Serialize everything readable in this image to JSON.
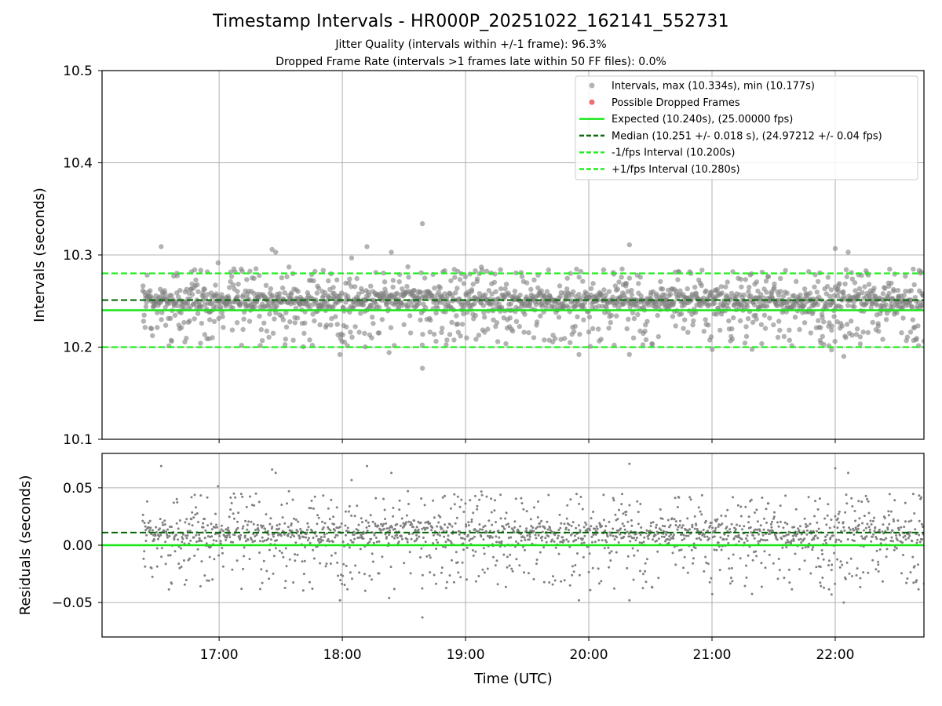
{
  "figure": {
    "title": "Timestamp Intervals - HR000P_20251022_162141_552731",
    "subtitle_1": "Jitter Quality (intervals within +/-1 frame): 96.3%",
    "subtitle_2": "Dropped Frame Rate (intervals >1 frames late within 50 FF files): 0.0%"
  },
  "colors": {
    "points": "#808080",
    "dropped": "#e8494c",
    "expected": "#19e619",
    "median": "#0b6b0b",
    "fps_interval": "#22ee22",
    "grid": "#b0b0b0"
  },
  "chart_data": [
    {
      "type": "scatter",
      "panel": "intervals",
      "ylabel": "Intervals (seconds)",
      "ylim": [
        10.1,
        10.5
      ],
      "yticks": [
        10.1,
        10.2,
        10.3,
        10.4,
        10.5
      ],
      "ytick_labels": [
        "10.1",
        "10.2",
        "10.3",
        "10.4",
        "10.5"
      ],
      "xlim_hours": [
        16.05,
        22.72
      ],
      "grid": true,
      "legend_position": "top-right",
      "series": [
        {
          "name": "Intervals, max (10.334s), min (10.177s)",
          "kind": "points",
          "count": 1800,
          "start_hour": 16.38,
          "end_hour": 22.72,
          "max": 10.334,
          "min": 10.177,
          "typical_band": [
            10.24,
            10.262
          ],
          "notable_points": [
            {
              "x": 18.65,
              "y": 10.334
            },
            {
              "x": 18.65,
              "y": 10.177
            },
            {
              "x": 20.33,
              "y": 10.311
            },
            {
              "x": 16.53,
              "y": 10.309
            },
            {
              "x": 18.2,
              "y": 10.309
            },
            {
              "x": 22.0,
              "y": 10.307
            },
            {
              "x": 17.43,
              "y": 10.306
            },
            {
              "x": 19.92,
              "y": 10.192
            },
            {
              "x": 20.33,
              "y": 10.192
            },
            {
              "x": 17.98,
              "y": 10.192
            },
            {
              "x": 18.38,
              "y": 10.194
            },
            {
              "x": 21.97,
              "y": 10.197
            }
          ]
        },
        {
          "name": "Possible Dropped Frames",
          "kind": "points",
          "values": []
        },
        {
          "name": "Expected (10.240s), (25.00000 fps)",
          "kind": "hline",
          "y": 10.24
        },
        {
          "name": "Median (10.251 +/- 0.018 s), (24.97212 +/- 0.04 fps)",
          "kind": "hline",
          "y": 10.251
        },
        {
          "name": "-1/fps Interval (10.200s)",
          "kind": "hline",
          "y": 10.2
        },
        {
          "name": "+1/fps Interval (10.280s)",
          "kind": "hline",
          "y": 10.28
        }
      ]
    },
    {
      "type": "scatter",
      "panel": "residuals",
      "xlabel": "Time (UTC)",
      "ylabel": "Residuals (seconds)",
      "ylim": [
        -0.08,
        0.08
      ],
      "yticks": [
        -0.05,
        0.0,
        0.05
      ],
      "ytick_labels": [
        "−0.05",
        "0.00",
        "0.05"
      ],
      "xlim_hours": [
        16.05,
        22.72
      ],
      "xticks_hours": [
        17,
        18,
        19,
        20,
        21,
        22
      ],
      "xtick_labels": [
        "17:00",
        "18:00",
        "19:00",
        "20:00",
        "21:00",
        "22:00"
      ],
      "grid": true,
      "series": [
        {
          "name": "Residuals",
          "kind": "points",
          "derived_from": "intervals minus expected (10.240s)"
        },
        {
          "name": "Expected",
          "kind": "hline",
          "y": 0.0
        },
        {
          "name": "Median",
          "kind": "hline",
          "y": 0.011
        }
      ]
    }
  ]
}
